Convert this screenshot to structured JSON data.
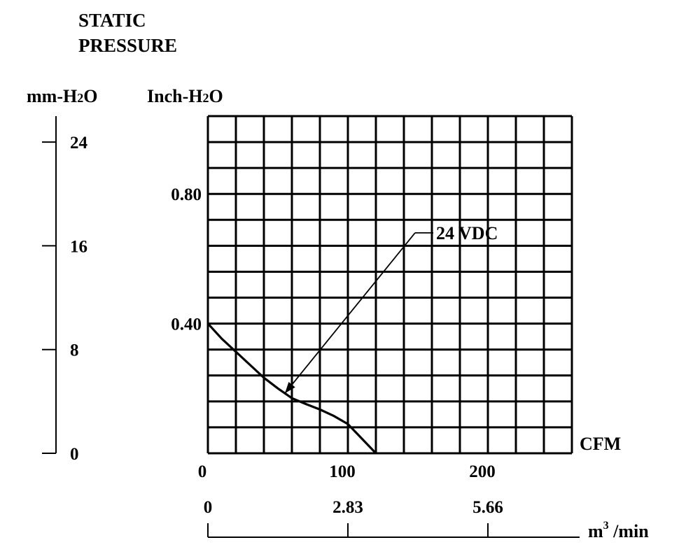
{
  "chart_data": {
    "type": "line",
    "title_lines": [
      "STATIC",
      "PRESSURE"
    ],
    "y_units_primary": "mm-H",
    "y_units_secondary": "Inch-H",
    "y_units_sub": "2",
    "y_units_tail": "O",
    "x_label": "CFM",
    "x2_label": "m",
    "x2_label_sup": "3",
    "x2_label_tail": " /min",
    "x_ticks": [
      {
        "value": 0,
        "label": "0"
      },
      {
        "value": 100,
        "label": "100"
      },
      {
        "value": 200,
        "label": "200"
      }
    ],
    "x2_ticks": [
      {
        "value": 0,
        "label": "0"
      },
      {
        "value": 100,
        "label": "2.83"
      },
      {
        "value": 200,
        "label": "5.66"
      }
    ],
    "y_ticks_inch": [
      {
        "value": 0.4,
        "label": "0.40"
      },
      {
        "value": 0.8,
        "label": "0.80"
      }
    ],
    "y_ticks_mm": [
      {
        "value": 0,
        "label": "0"
      },
      {
        "value": 8,
        "label": "8"
      },
      {
        "value": 16,
        "label": "16"
      },
      {
        "value": 24,
        "label": "24"
      }
    ],
    "xlim": [
      0,
      260
    ],
    "ylim_inch": [
      0,
      1.04
    ],
    "series": [
      {
        "name": "24 VDC",
        "x": [
          0,
          10,
          20,
          30,
          40,
          50,
          60,
          70,
          80,
          90,
          100,
          110,
          120
        ],
        "y": [
          0.4,
          0.353,
          0.313,
          0.273,
          0.233,
          0.2,
          0.17,
          0.152,
          0.135,
          0.115,
          0.09,
          0.045,
          0.0
        ]
      }
    ],
    "annotation": {
      "text": "24 VDC",
      "x": 148,
      "y": 0.68,
      "target_x": 55,
      "target_y": 0.185
    },
    "grid": true
  }
}
